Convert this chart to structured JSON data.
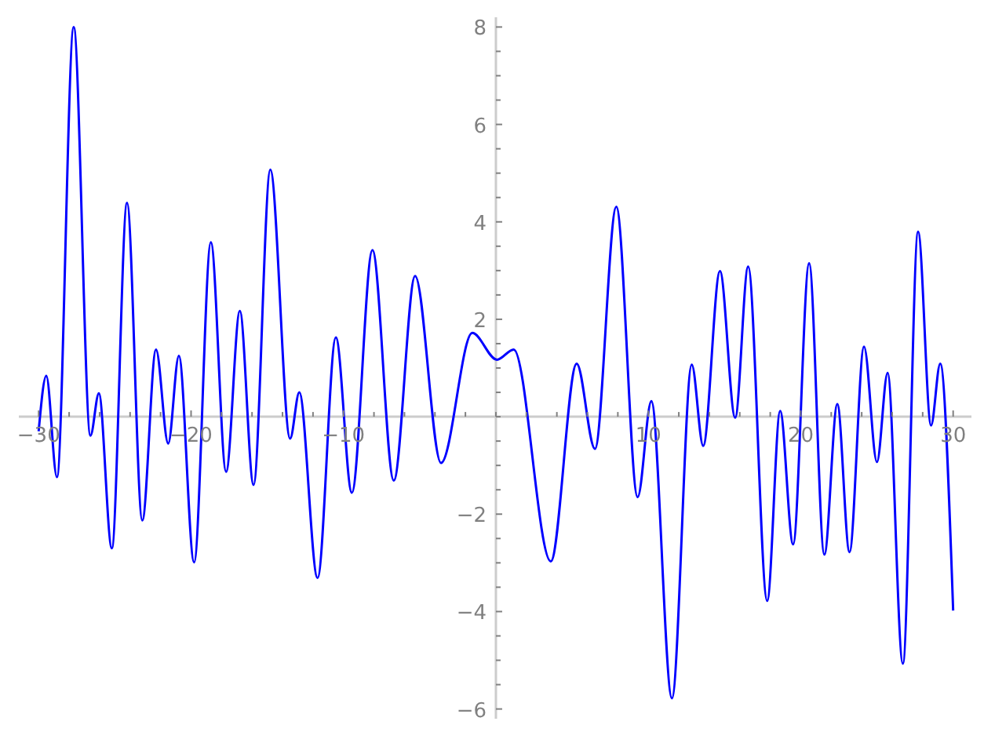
{
  "chart_data": {
    "type": "line",
    "color": "#0000ff",
    "marker": "none",
    "x": [
      -30,
      -29.5,
      -28.8,
      -27.7,
      -26.6,
      -26.05,
      -25.2,
      -24.2,
      -23.2,
      -22.3,
      -21.5,
      -20.8,
      -19.8,
      -18.7,
      -17.7,
      -16.8,
      -15.9,
      -14.8,
      -13.5,
      -12.9,
      -11.7,
      -10.5,
      -9.45,
      -8.1,
      -6.7,
      -5.3,
      -3.6,
      -1.55,
      0.07,
      1.17,
      3.6,
      5.3,
      6.5,
      7.9,
      9.3,
      10.2,
      11.55,
      12.85,
      13.6,
      14.7,
      15.7,
      16.55,
      17.8,
      18.65,
      19.5,
      20.55,
      21.55,
      22.4,
      23.2,
      24.15,
      25.0,
      25.7,
      26.7,
      27.7,
      28.55,
      29.15,
      30
    ],
    "values": [
      -0.3,
      0.84,
      -1.24,
      8.0,
      -0.39,
      0.48,
      -2.7,
      4.39,
      -2.13,
      1.38,
      -0.55,
      1.25,
      -2.99,
      3.58,
      -1.13,
      2.17,
      -1.4,
      5.07,
      -0.45,
      0.5,
      -3.31,
      1.63,
      -1.56,
      3.42,
      -1.31,
      2.89,
      -0.95,
      1.72,
      1.17,
      1.38,
      -2.97,
      1.09,
      -0.66,
      4.31,
      -1.65,
      0.32,
      -5.78,
      1.07,
      -0.6,
      2.99,
      -0.02,
      3.08,
      -3.78,
      0.12,
      -2.62,
      3.15,
      -2.83,
      0.26,
      -2.78,
      1.44,
      -0.93,
      0.9,
      -5.07,
      3.8,
      -0.18,
      1.09,
      -3.98
    ],
    "xlim": [
      -31.3,
      31.2
    ],
    "ylim": [
      -6.2,
      8.2
    ],
    "xticks": [
      {
        "value": -30,
        "label": "−30"
      },
      {
        "value": -28,
        "label": null
      },
      {
        "value": -26,
        "label": null
      },
      {
        "value": -24,
        "label": null
      },
      {
        "value": -22,
        "label": null
      },
      {
        "value": -20,
        "label": "−20"
      },
      {
        "value": -18,
        "label": null
      },
      {
        "value": -16,
        "label": null
      },
      {
        "value": -14,
        "label": null
      },
      {
        "value": -12,
        "label": null
      },
      {
        "value": -10,
        "label": "−10"
      },
      {
        "value": -8,
        "label": null
      },
      {
        "value": -6,
        "label": null
      },
      {
        "value": -4,
        "label": null
      },
      {
        "value": -2,
        "label": null
      },
      {
        "value": 0,
        "label": null
      },
      {
        "value": 2,
        "label": null
      },
      {
        "value": 4,
        "label": null
      },
      {
        "value": 6,
        "label": null
      },
      {
        "value": 8,
        "label": null
      },
      10,
      {
        "value": 12,
        "label": null
      },
      {
        "value": 14,
        "label": null
      },
      {
        "value": 16,
        "label": null
      },
      {
        "value": 18,
        "label": null
      },
      20,
      {
        "value": 22,
        "label": null
      },
      {
        "value": 24,
        "label": null
      },
      {
        "value": 26,
        "label": null
      },
      {
        "value": 28,
        "label": null
      },
      30
    ],
    "yticks": [
      {
        "value": -6,
        "label": "−6"
      },
      {
        "value": -5.5,
        "label": null
      },
      {
        "value": -5,
        "label": null
      },
      {
        "value": -4.5,
        "label": null
      },
      {
        "value": -4,
        "label": "−4"
      },
      {
        "value": -3.5,
        "label": null
      },
      {
        "value": -3,
        "label": null
      },
      {
        "value": -2.5,
        "label": null
      },
      {
        "value": -2,
        "label": "−2"
      },
      {
        "value": -1.5,
        "label": null
      },
      {
        "value": -1,
        "label": null
      },
      {
        "value": -0.5,
        "label": null
      },
      {
        "value": 0,
        "label": null
      },
      {
        "value": 0.5,
        "label": null
      },
      {
        "value": 1,
        "label": null
      },
      {
        "value": 1.5,
        "label": null
      },
      2,
      {
        "value": 2.5,
        "label": null
      },
      {
        "value": 3,
        "label": null
      },
      {
        "value": 3.5,
        "label": null
      },
      4,
      {
        "value": 4.5,
        "label": null
      },
      {
        "value": 5,
        "label": null
      },
      {
        "value": 5.5,
        "label": null
      },
      6,
      {
        "value": 6.5,
        "label": null
      },
      {
        "value": 7,
        "label": null
      },
      {
        "value": 7.5,
        "label": null
      },
      8
    ]
  }
}
